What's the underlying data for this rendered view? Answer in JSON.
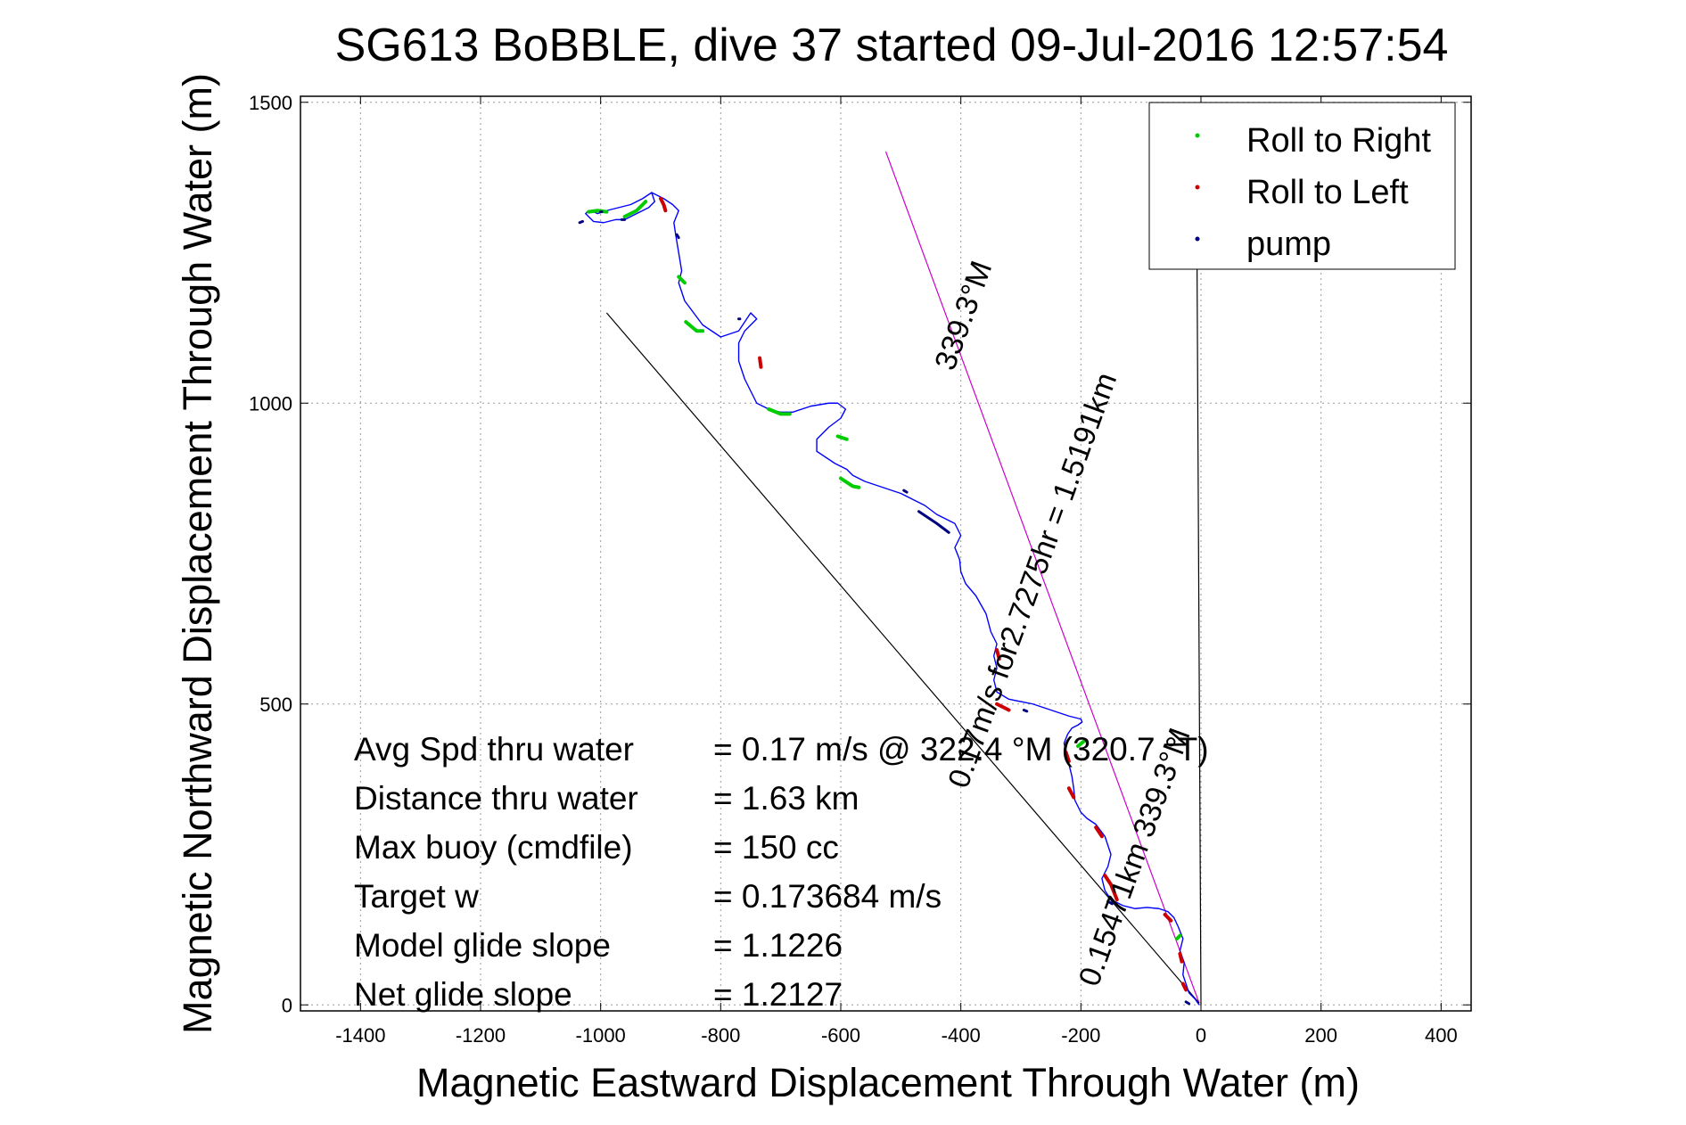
{
  "chart_data": {
    "type": "line",
    "title": "SG613 BoBBLE, dive 37 started 09-Jul-2016 12:57:54",
    "xlabel": "Magnetic Eastward Displacement Through Water (m)",
    "ylabel": "Magnetic Northward Displacement Through Water (m)",
    "xlim": [
      -1500,
      450
    ],
    "ylim": [
      -10,
      1510
    ],
    "xticks": [
      -1400,
      -1200,
      -1000,
      -800,
      -600,
      -400,
      -200,
      0,
      200,
      400
    ],
    "yticks": [
      0,
      500,
      1000,
      1500
    ],
    "grid": true,
    "legend": {
      "placement": "top-right",
      "entries": [
        {
          "label": "Roll to Right",
          "color": "#00cc00"
        },
        {
          "label": "Roll to Left",
          "color": "#cc0000"
        },
        {
          "label": "pump",
          "color": "#000080"
        }
      ]
    },
    "track": {
      "name": "dive track",
      "color": "#0000ff",
      "x": [
        -3,
        -10,
        -20,
        -25,
        -30,
        -28,
        -35,
        -30,
        -38,
        -45,
        -55,
        -70,
        -90,
        -110,
        -130,
        -150,
        -160,
        -165,
        -155,
        -150,
        -160,
        -175,
        -190,
        -200,
        -210,
        -212,
        -215,
        -220,
        -225,
        -228,
        -222,
        -215,
        -205,
        -198,
        -200,
        -220,
        -250,
        -280,
        -320,
        -340,
        -345,
        -340,
        -345,
        -340,
        -350,
        -358,
        -375,
        -392,
        -400,
        -402,
        -410,
        -400,
        -410,
        -420,
        -440,
        -460,
        -480,
        -500,
        -530,
        -560,
        -580,
        -590,
        -610,
        -640,
        -640,
        -620,
        -600,
        -592,
        -605,
        -620,
        -650,
        -680,
        -700,
        -720,
        -740,
        -750,
        -760,
        -770,
        -770,
        -760,
        -750,
        -740,
        -750,
        -760,
        -770,
        -800,
        -830,
        -845,
        -860,
        -870,
        -865,
        -870,
        -875,
        -878,
        -870,
        -880,
        -895,
        -905,
        -915,
        -910,
        -920,
        -940,
        -960,
        -975,
        -995,
        -1012,
        -1020,
        -1025,
        -1020,
        -1012,
        -1005,
        -990,
        -970,
        -950,
        -930,
        -915,
        -905
      ],
      "y": [
        0,
        10,
        20,
        35,
        50,
        70,
        90,
        110,
        130,
        145,
        155,
        160,
        162,
        160,
        165,
        175,
        190,
        210,
        230,
        250,
        280,
        300,
        310,
        320,
        340,
        360,
        380,
        400,
        420,
        435,
        450,
        460,
        465,
        470,
        475,
        480,
        490,
        500,
        508,
        520,
        540,
        560,
        580,
        600,
        620,
        650,
        680,
        700,
        720,
        740,
        760,
        780,
        800,
        805,
        815,
        830,
        840,
        850,
        860,
        870,
        880,
        890,
        900,
        920,
        940,
        960,
        975,
        990,
        1000,
        1000,
        995,
        985,
        985,
        990,
        1000,
        1020,
        1040,
        1070,
        1100,
        1120,
        1130,
        1140,
        1150,
        1135,
        1120,
        1110,
        1130,
        1150,
        1170,
        1200,
        1220,
        1250,
        1280,
        1300,
        1320,
        1330,
        1340,
        1345,
        1350,
        1335,
        1325,
        1315,
        1305,
        1305,
        1300,
        1302,
        1310,
        1315,
        1320,
        1318,
        1315,
        1320,
        1325,
        1330,
        1340,
        1350,
        1345
      ]
    },
    "roll_right_segments": [
      {
        "x": [
          -1020,
          -1005,
          -990
        ],
        "y": [
          1318,
          1320,
          1318
        ]
      },
      {
        "x": [
          -960,
          -940,
          -925
        ],
        "y": [
          1310,
          1320,
          1335
        ]
      },
      {
        "x": [
          -870,
          -860
        ],
        "y": [
          1210,
          1200
        ]
      },
      {
        "x": [
          -858,
          -840,
          -830
        ],
        "y": [
          1135,
          1120,
          1120
        ]
      },
      {
        "x": [
          -720,
          -700,
          -685
        ],
        "y": [
          990,
          982,
          982
        ]
      },
      {
        "x": [
          -605,
          -590
        ],
        "y": [
          945,
          940
        ]
      },
      {
        "x": [
          -600,
          -580,
          -570
        ],
        "y": [
          875,
          862,
          860
        ]
      },
      {
        "x": [
          -205,
          -195
        ],
        "y": [
          430,
          438
        ]
      },
      {
        "x": [
          -40,
          -35
        ],
        "y": [
          110,
          115
        ]
      }
    ],
    "roll_left_segments": [
      {
        "x": [
          -900,
          -895,
          -892
        ],
        "y": [
          1340,
          1330,
          1320
        ]
      },
      {
        "x": [
          -735,
          -733
        ],
        "y": [
          1075,
          1060
        ]
      },
      {
        "x": [
          -340,
          -336
        ],
        "y": [
          590,
          575
        ]
      },
      {
        "x": [
          -340,
          -320
        ],
        "y": [
          500,
          490
        ]
      },
      {
        "x": [
          -225,
          -220
        ],
        "y": [
          420,
          405
        ]
      },
      {
        "x": [
          -220,
          -212
        ],
        "y": [
          360,
          345
        ]
      },
      {
        "x": [
          -175,
          -165
        ],
        "y": [
          295,
          280
        ]
      },
      {
        "x": [
          -160,
          -150,
          -140
        ],
        "y": [
          215,
          200,
          175
        ]
      },
      {
        "x": [
          -60,
          -50
        ],
        "y": [
          150,
          140
        ]
      },
      {
        "x": [
          -35,
          -32
        ],
        "y": [
          85,
          72
        ]
      },
      {
        "x": [
          -30,
          -25
        ],
        "y": [
          35,
          25
        ]
      }
    ],
    "pump_segments": [
      {
        "x": [
          -1035,
          -1030
        ],
        "y": [
          1300,
          1302
        ]
      },
      {
        "x": [
          -1000,
          -998
        ],
        "y": [
          1318,
          1318
        ]
      },
      {
        "x": [
          -965,
          -960
        ],
        "y": [
          1305,
          1305
        ]
      },
      {
        "x": [
          -873,
          -870
        ],
        "y": [
          1280,
          1275
        ]
      },
      {
        "x": [
          -770,
          -768
        ],
        "y": [
          1140,
          1140
        ]
      },
      {
        "x": [
          -495,
          -490
        ],
        "y": [
          855,
          852
        ]
      },
      {
        "x": [
          -470,
          -440,
          -420
        ],
        "y": [
          820,
          800,
          785
        ]
      },
      {
        "x": [
          -295,
          -290
        ],
        "y": [
          490,
          488
        ]
      },
      {
        "x": [
          -155,
          -148
        ],
        "y": [
          172,
          168
        ]
      },
      {
        "x": [
          -25,
          -20
        ],
        "y": [
          5,
          2
        ]
      }
    ],
    "reference_lines": [
      {
        "name": "heading line",
        "color": "#cc00cc",
        "x": [
          -525,
          -3
        ],
        "y": [
          1418,
          3
        ]
      },
      {
        "name": "glide slope line",
        "color": "#000000",
        "x": [
          -990,
          -3
        ],
        "y": [
          1150,
          3
        ]
      },
      {
        "name": "north line",
        "color": "#000000",
        "x": [
          -8,
          0
        ],
        "y": [
          1500,
          0
        ]
      }
    ],
    "annotations": [
      {
        "text": "339.3°M",
        "x": -380,
        "y": 1140,
        "angle": -70
      },
      {
        "text": "0.17m/s for2.7275hr = 1.5191km",
        "x": -265,
        "y": 700,
        "angle": -70
      },
      {
        "text": "0.15471km 339.3°M",
        "x": -95,
        "y": 240,
        "angle": -70
      }
    ],
    "stats": [
      {
        "label": "Avg Spd thru water",
        "value": "=  0.17 m/s @ 322.4 °M (320.7 °T)"
      },
      {
        "label": "Distance thru water",
        "value": "=  1.63 km"
      },
      {
        "label": "Max buoy (cmdfile)",
        "value": "= 150 cc"
      },
      {
        "label": "Target w",
        "value": "= 0.173684 m/s"
      },
      {
        "label": "Model glide slope",
        "value": "= 1.1226"
      },
      {
        "label": "Net glide slope",
        "value": "= 1.2127"
      }
    ]
  }
}
